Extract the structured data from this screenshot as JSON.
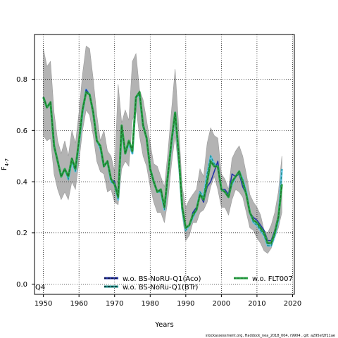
{
  "chart_data": {
    "type": "line",
    "xlabel": "Years",
    "ylabel_main": "F",
    "ylabel_sub": "4-7",
    "xlim": [
      1947.5,
      2020.5
    ],
    "ylim": [
      -0.04,
      0.975
    ],
    "x_ticks": [
      1950,
      1960,
      1970,
      1980,
      1990,
      2000,
      2010,
      2020
    ],
    "y_ticks": [
      0.0,
      0.2,
      0.4,
      0.6,
      0.8
    ],
    "y_tick_labels": [
      "0.0",
      "0.2",
      "0.4",
      "0.6",
      "0.8"
    ],
    "grid": true,
    "corner_label": "Q4",
    "footer": "stockassessment.org, Haddock_nea_2018_004, r9904 , git: a295ef2f11ae",
    "colors": {
      "band": "#b3b3b3",
      "band_edge": "#9a9a9a",
      "light_blue": "#6cc7e8",
      "teal": "#1a8c86",
      "blue": "#2433a8",
      "dark_green": "#1e6b2a",
      "green": "#2aa84a"
    },
    "x": [
      1950,
      1951,
      1952,
      1953,
      1954,
      1955,
      1956,
      1957,
      1958,
      1959,
      1960,
      1961,
      1962,
      1963,
      1964,
      1965,
      1966,
      1967,
      1968,
      1969,
      1970,
      1971,
      1972,
      1973,
      1974,
      1975,
      1976,
      1977,
      1978,
      1979,
      1980,
      1981,
      1982,
      1983,
      1984,
      1985,
      1986,
      1987,
      1988,
      1989,
      1990,
      1991,
      1992,
      1993,
      1994,
      1995,
      1996,
      1997,
      1998,
      1999,
      2000,
      2001,
      2002,
      2003,
      2004,
      2005,
      2006,
      2007,
      2008,
      2009,
      2010,
      2011,
      2012,
      2013,
      2014,
      2015,
      2016,
      2017
    ],
    "band_upper": [
      0.92,
      0.85,
      0.87,
      0.67,
      0.56,
      0.51,
      0.56,
      0.5,
      0.6,
      0.55,
      0.67,
      0.82,
      0.93,
      0.92,
      0.8,
      0.66,
      0.56,
      0.6,
      0.52,
      0.5,
      0.44,
      0.78,
      0.63,
      0.68,
      0.64,
      0.87,
      0.9,
      0.76,
      0.72,
      0.64,
      0.55,
      0.47,
      0.46,
      0.42,
      0.38,
      0.52,
      0.68,
      0.84,
      0.62,
      0.38,
      0.3,
      0.33,
      0.35,
      0.37,
      0.45,
      0.42,
      0.55,
      0.61,
      0.58,
      0.57,
      0.43,
      0.41,
      0.37,
      0.49,
      0.52,
      0.54,
      0.5,
      0.43,
      0.35,
      0.32,
      0.3,
      0.27,
      0.21,
      0.2,
      0.23,
      0.28,
      0.36,
      0.5
    ],
    "band_lower": [
      0.58,
      0.56,
      0.57,
      0.43,
      0.37,
      0.33,
      0.36,
      0.33,
      0.4,
      0.37,
      0.48,
      0.6,
      0.68,
      0.66,
      0.58,
      0.48,
      0.44,
      0.43,
      0.36,
      0.37,
      0.32,
      0.31,
      0.45,
      0.48,
      0.46,
      0.64,
      0.69,
      0.58,
      0.5,
      0.46,
      0.38,
      0.32,
      0.28,
      0.28,
      0.24,
      0.33,
      0.47,
      0.58,
      0.45,
      0.27,
      0.17,
      0.19,
      0.24,
      0.24,
      0.28,
      0.29,
      0.32,
      0.38,
      0.42,
      0.37,
      0.3,
      0.3,
      0.27,
      0.33,
      0.37,
      0.36,
      0.34,
      0.28,
      0.22,
      0.21,
      0.18,
      0.16,
      0.13,
      0.12,
      0.14,
      0.18,
      0.22,
      0.28
    ],
    "series": [
      {
        "name": "w.o. BS-NoRU-Q1(Aco)",
        "style": "dashed",
        "color": "blue",
        "values": [
          0.73,
          0.69,
          0.71,
          0.54,
          0.48,
          0.42,
          0.45,
          0.42,
          0.49,
          0.45,
          0.56,
          0.68,
          0.76,
          0.74,
          0.68,
          0.56,
          0.54,
          0.46,
          0.48,
          0.41,
          0.4,
          0.35,
          0.62,
          0.51,
          0.56,
          0.52,
          0.73,
          0.75,
          0.63,
          0.57,
          0.45,
          0.4,
          0.36,
          0.37,
          0.3,
          0.44,
          0.56,
          0.67,
          0.51,
          0.3,
          0.22,
          0.23,
          0.28,
          0.3,
          0.35,
          0.32,
          0.38,
          0.4,
          0.44,
          0.48,
          0.37,
          0.37,
          0.35,
          0.43,
          0.42,
          0.43,
          0.38,
          0.35,
          0.28,
          0.26,
          0.25,
          0.23,
          0.21,
          0.17,
          0.17,
          0.21,
          0.27,
          0.39
        ]
      },
      {
        "name": "w.o. BS-NoRu-Q1(BTr)",
        "style": "dashed",
        "color": "light_blue",
        "values": [
          0.73,
          0.69,
          0.71,
          0.54,
          0.48,
          0.42,
          0.45,
          0.41,
          0.48,
          0.44,
          0.55,
          0.67,
          0.76,
          0.74,
          0.67,
          0.56,
          0.53,
          0.46,
          0.48,
          0.4,
          0.39,
          0.33,
          0.61,
          0.51,
          0.55,
          0.51,
          0.73,
          0.74,
          0.62,
          0.57,
          0.45,
          0.4,
          0.36,
          0.36,
          0.29,
          0.43,
          0.55,
          0.67,
          0.5,
          0.29,
          0.21,
          0.23,
          0.26,
          0.29,
          0.36,
          0.34,
          0.43,
          0.5,
          0.47,
          0.46,
          0.37,
          0.36,
          0.35,
          0.39,
          0.42,
          0.44,
          0.41,
          0.36,
          0.28,
          0.24,
          0.23,
          0.21,
          0.19,
          0.15,
          0.15,
          0.19,
          0.25,
          0.45
        ]
      },
      {
        "name": "w.o. FLT007",
        "style": "dashed",
        "color": "dark_green",
        "values": [
          0.73,
          0.69,
          0.71,
          0.54,
          0.48,
          0.42,
          0.45,
          0.42,
          0.49,
          0.45,
          0.56,
          0.68,
          0.75,
          0.74,
          0.67,
          0.56,
          0.54,
          0.46,
          0.48,
          0.41,
          0.39,
          0.34,
          0.62,
          0.51,
          0.56,
          0.52,
          0.73,
          0.75,
          0.62,
          0.57,
          0.45,
          0.4,
          0.36,
          0.37,
          0.3,
          0.43,
          0.56,
          0.67,
          0.51,
          0.3,
          0.22,
          0.23,
          0.27,
          0.29,
          0.35,
          0.33,
          0.4,
          0.48,
          0.46,
          0.46,
          0.37,
          0.36,
          0.34,
          0.4,
          0.42,
          0.44,
          0.4,
          0.35,
          0.28,
          0.25,
          0.24,
          0.22,
          0.2,
          0.16,
          0.16,
          0.2,
          0.26,
          0.39
        ]
      }
    ],
    "legend": [
      {
        "label": "w.o. BS-NoRU-Q1(Aco)",
        "color": "blue"
      },
      {
        "label": "w.o. BS-NoRu-Q1(BTr)",
        "color": "teal"
      },
      {
        "label": "w.o. FLT007",
        "color": "green"
      }
    ]
  }
}
